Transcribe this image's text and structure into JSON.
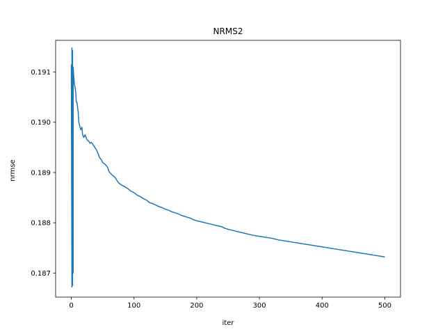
{
  "chart_data": {
    "type": "line",
    "title": "NRMS2",
    "xlabel": "iter",
    "ylabel": "nrmse",
    "xlim": [
      -25,
      525
    ],
    "ylim": [
      0.18652,
      0.19163
    ],
    "grid": false,
    "x_ticks": [
      0,
      100,
      200,
      300,
      400,
      500
    ],
    "x_tick_labels": [
      "0",
      "100",
      "200",
      "300",
      "400",
      "500"
    ],
    "y_ticks": [
      0.187,
      0.188,
      0.189,
      0.19,
      0.191
    ],
    "y_tick_labels": [
      "0.187",
      "0.188",
      "0.189",
      "0.190",
      "0.191"
    ],
    "series": [
      {
        "color": "#1f77b4",
        "x": [
          0,
          1,
          1,
          2,
          2,
          3,
          3,
          4,
          5,
          6,
          7,
          8,
          9,
          10,
          11,
          12,
          13,
          15,
          17,
          18,
          20,
          22,
          25,
          28,
          30,
          32,
          35,
          40,
          42,
          45,
          48,
          50,
          55,
          58,
          60,
          65,
          70,
          75,
          80,
          85,
          90,
          95,
          100,
          105,
          110,
          115,
          120,
          125,
          130,
          135,
          140,
          145,
          150,
          155,
          160,
          165,
          170,
          175,
          180,
          185,
          190,
          195,
          200,
          210,
          220,
          230,
          240,
          245,
          250,
          260,
          270,
          280,
          290,
          300,
          310,
          320,
          330,
          340,
          350,
          360,
          370,
          380,
          390,
          400,
          410,
          420,
          430,
          440,
          450,
          460,
          470,
          480,
          485,
          490,
          495,
          500
        ],
        "y": [
          0.19115,
          0.18672,
          0.19148,
          0.18675,
          0.19143,
          0.187,
          0.1911,
          0.1909,
          0.19075,
          0.1907,
          0.1906,
          0.1904,
          0.1904,
          0.1903,
          0.1902,
          0.19,
          0.18995,
          0.18985,
          0.1899,
          0.18975,
          0.1897,
          0.18975,
          0.18965,
          0.18962,
          0.18958,
          0.1896,
          0.18955,
          0.18945,
          0.1894,
          0.1893,
          0.18925,
          0.1892,
          0.18915,
          0.1891,
          0.18902,
          0.18895,
          0.1889,
          0.1888,
          0.18875,
          0.18872,
          0.18868,
          0.18863,
          0.1886,
          0.18855,
          0.18852,
          0.18848,
          0.18845,
          0.1884,
          0.18838,
          0.18835,
          0.18832,
          0.1883,
          0.18827,
          0.18825,
          0.18822,
          0.1882,
          0.18818,
          0.18815,
          0.18813,
          0.18811,
          0.18809,
          0.18806,
          0.18804,
          0.18801,
          0.18798,
          0.18795,
          0.18792,
          0.18789,
          0.18787,
          0.18784,
          0.18781,
          0.18778,
          0.18775,
          0.18773,
          0.18771,
          0.18769,
          0.18766,
          0.18764,
          0.18762,
          0.1876,
          0.18758,
          0.18756,
          0.18754,
          0.18752,
          0.1875,
          0.18748,
          0.18746,
          0.18744,
          0.18742,
          0.1874,
          0.18738,
          0.18736,
          0.18735,
          0.18734,
          0.18733,
          0.18732
        ]
      }
    ]
  }
}
